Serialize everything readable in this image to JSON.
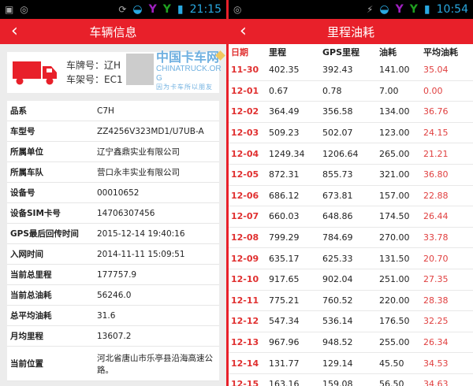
{
  "left": {
    "status": {
      "time": "21:15"
    },
    "title": "车辆信息",
    "plate_label": "车牌号：辽H",
    "frame_label": "车架号：EC1",
    "fields": [
      {
        "k": "品系",
        "v": "C7H"
      },
      {
        "k": "车型号",
        "v": "ZZ4256V323MD1/U7UB-A"
      },
      {
        "k": "所属单位",
        "v": "辽宁鑫鼎实业有限公司"
      },
      {
        "k": "所属车队",
        "v": "营口永丰实业有限公司"
      },
      {
        "k": "设备号",
        "v": "00010652"
      },
      {
        "k": "设备SIM卡号",
        "v": "14706307456"
      },
      {
        "k": "GPS最后回传时间",
        "v": "2015-12-14 19:40:16"
      },
      {
        "k": "入网时间",
        "v": "2014-11-11 15:09:51"
      },
      {
        "k": "当前总里程",
        "v": "177757.9"
      },
      {
        "k": "当前总油耗",
        "v": "56246.0"
      },
      {
        "k": "总平均油耗",
        "v": "31.6"
      },
      {
        "k": "月均里程",
        "v": "13607.2"
      },
      {
        "k": "当前位置",
        "v": "河北省唐山市乐亭县沿海高速公路。"
      }
    ]
  },
  "right": {
    "status": {
      "time": "10:54"
    },
    "title": "里程油耗",
    "headers": [
      "日期",
      "里程",
      "GPS里程",
      "油耗",
      "平均油耗"
    ],
    "rows": [
      [
        "11-30",
        "402.35",
        "392.43",
        "141.00",
        "35.04"
      ],
      [
        "12-01",
        "0.67",
        "0.78",
        "7.00",
        "0.00"
      ],
      [
        "12-02",
        "364.49",
        "356.58",
        "134.00",
        "36.76"
      ],
      [
        "12-03",
        "509.23",
        "502.07",
        "123.00",
        "24.15"
      ],
      [
        "12-04",
        "1249.34",
        "1206.64",
        "265.00",
        "21.21"
      ],
      [
        "12-05",
        "872.31",
        "855.73",
        "321.00",
        "36.80"
      ],
      [
        "12-06",
        "686.12",
        "673.81",
        "157.00",
        "22.88"
      ],
      [
        "12-07",
        "660.03",
        "648.86",
        "174.50",
        "26.44"
      ],
      [
        "12-08",
        "799.29",
        "784.69",
        "270.00",
        "33.78"
      ],
      [
        "12-09",
        "635.17",
        "625.33",
        "131.50",
        "20.70"
      ],
      [
        "12-10",
        "917.65",
        "902.04",
        "251.00",
        "27.35"
      ],
      [
        "12-11",
        "775.21",
        "760.52",
        "220.00",
        "28.38"
      ],
      [
        "12-12",
        "547.34",
        "536.14",
        "176.50",
        "32.25"
      ],
      [
        "12-13",
        "967.96",
        "948.52",
        "255.00",
        "26.34"
      ],
      [
        "12-14",
        "131.77",
        "129.14",
        "45.50",
        "34.53"
      ],
      [
        "12-15",
        "163.16",
        "159.08",
        "56.50",
        "34.63"
      ]
    ]
  },
  "watermark": {
    "name": "中国卡车网",
    "domain": "CHINATRUCK.ORG",
    "slogan": "因为卡车所以朋友"
  },
  "colors": {
    "accent": "#e8202a"
  }
}
